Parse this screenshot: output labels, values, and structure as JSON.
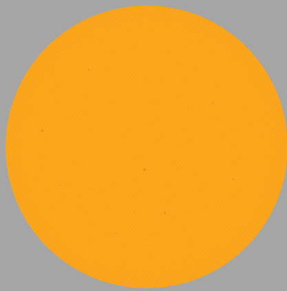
{
  "background_color": "#a5a5a5",
  "swatch_color": "#fba61a",
  "speck_color": "#e8781a"
}
